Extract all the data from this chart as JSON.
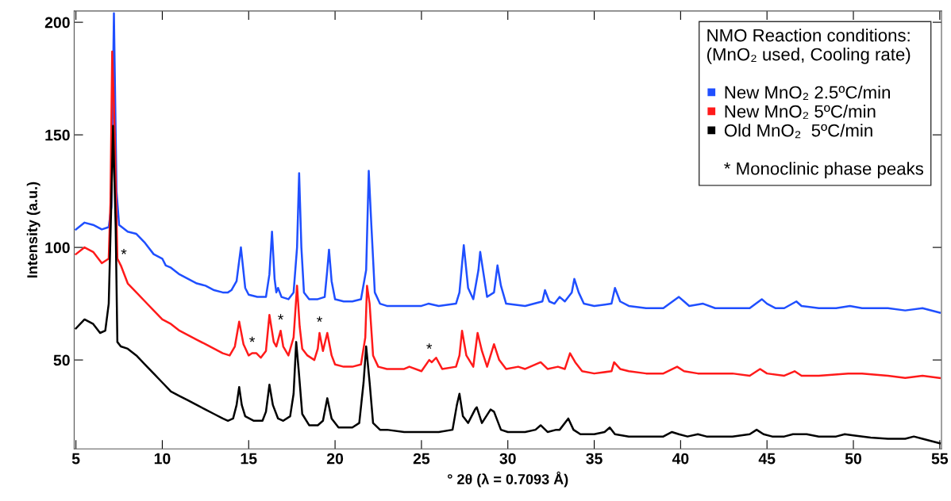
{
  "chart_data": {
    "type": "line",
    "xlabel": "° 2θ (λ = 0.7093 Å)",
    "ylabel": "Intensity (a.u.)",
    "legend_title": "NMO Reaction conditions:\n(MnO₂ used, Cooling rate)",
    "legend": "top right",
    "line_style": "solid",
    "marker": "none",
    "xlim": [
      4.9,
      55.1
    ],
    "ylim": [
      10.5,
      205
    ],
    "xticks": [
      5,
      10,
      15,
      20,
      25,
      30,
      35,
      40,
      45,
      50,
      55
    ],
    "yticks": [
      50,
      100,
      150,
      200
    ],
    "annotations": [
      {
        "text": "*",
        "x": 7.6,
        "y": 92
      },
      {
        "text": "*",
        "x": 15.2,
        "y": 53
      },
      {
        "text": "*",
        "x": 16.85,
        "y": 63
      },
      {
        "text": "*",
        "x": 19.1,
        "y": 62
      },
      {
        "text": "*",
        "x": 25.45,
        "y": 50
      },
      "* Monoclinic phase peaks"
    ],
    "series": [
      {
        "name": "New MnO₂ 2.5ºC/min",
        "color": "#1f4fff",
        "x": [
          5.0,
          5.5,
          6.0,
          6.5,
          6.9,
          7.05,
          7.2,
          7.35,
          7.5,
          8.0,
          8.5,
          9.0,
          9.5,
          10.0,
          10.2,
          10.5,
          11,
          11.5,
          12,
          12.5,
          13,
          13.5,
          13.8,
          14.0,
          14.3,
          14.55,
          14.8,
          15.0,
          15.5,
          16.0,
          16.2,
          16.35,
          16.5,
          16.6,
          16.7,
          16.9,
          17.3,
          17.6,
          17.8,
          17.92,
          18.05,
          18.2,
          18.5,
          19.0,
          19.4,
          19.55,
          19.65,
          19.8,
          20.0,
          20.5,
          21,
          21.5,
          21.8,
          21.95,
          22.1,
          22.3,
          22.6,
          23,
          24,
          25,
          25.4,
          26,
          27,
          27.2,
          27.45,
          27.7,
          28,
          28.3,
          28.4,
          28.6,
          28.8,
          29.2,
          29.4,
          29.6,
          29.9,
          31,
          32,
          32.15,
          32.4,
          32.7,
          33.0,
          33.3,
          33.7,
          33.85,
          34.1,
          34.4,
          35,
          36,
          36.2,
          36.5,
          37,
          38,
          39,
          39.9,
          40.2,
          40.5,
          41.3,
          42,
          43,
          44,
          44.7,
          45.0,
          45.5,
          46,
          46.7,
          47,
          48,
          49,
          49.8,
          50.5,
          52,
          53,
          54,
          55
        ],
        "values": [
          108,
          111,
          110,
          108,
          109,
          118,
          204,
          125,
          110,
          107,
          106,
          102,
          97,
          95,
          92,
          91,
          88,
          86,
          84,
          83,
          81,
          80,
          80,
          81,
          85,
          100,
          82,
          79,
          78,
          78,
          88,
          107,
          86,
          80,
          82,
          78,
          77,
          80,
          100,
          133,
          100,
          80,
          77,
          77,
          78,
          90,
          99,
          85,
          77,
          76,
          76,
          77,
          90,
          134,
          110,
          80,
          75,
          74,
          74,
          74,
          75,
          74,
          75,
          80,
          101,
          82,
          77,
          90,
          98,
          88,
          78,
          80,
          92,
          83,
          75,
          74,
          76,
          81,
          76,
          75,
          78,
          76,
          80,
          86,
          80,
          75,
          74,
          75,
          82,
          76,
          74,
          73,
          73,
          78,
          76,
          74,
          75,
          73,
          73,
          73,
          77,
          75,
          73,
          73,
          76,
          74,
          73,
          73,
          74,
          73,
          73,
          72,
          73,
          71
        ]
      },
      {
        "name": "New MnO₂ 5ºC/min",
        "color": "#ff1a1a",
        "x": [
          5.0,
          5.5,
          6.0,
          6.5,
          6.9,
          7.0,
          7.1,
          7.25,
          7.4,
          7.6,
          8,
          8.5,
          9,
          9.5,
          10,
          10.5,
          11,
          11.5,
          12,
          12.5,
          13,
          13.5,
          13.9,
          14.2,
          14.45,
          14.7,
          15.0,
          15.2,
          15.45,
          15.7,
          16.0,
          16.2,
          16.45,
          16.6,
          16.85,
          17.0,
          17.3,
          17.6,
          17.8,
          17.95,
          18.1,
          18.4,
          18.8,
          19.0,
          19.1,
          19.3,
          19.55,
          19.8,
          20,
          20.5,
          21,
          21.5,
          21.75,
          21.85,
          22.0,
          22.2,
          22.5,
          23,
          24,
          24.3,
          25,
          25.45,
          25.6,
          25.85,
          26.2,
          27,
          27.2,
          27.35,
          27.6,
          28,
          28.25,
          28.5,
          28.8,
          29.2,
          29.5,
          29.9,
          30.6,
          31,
          31.9,
          32.3,
          32.9,
          33.3,
          33.6,
          33.9,
          34.3,
          35,
          36,
          36.15,
          36.5,
          37,
          38,
          39,
          39.8,
          40.2,
          41,
          42,
          43,
          44,
          44.6,
          45,
          46,
          46.6,
          47,
          48,
          49.7,
          50.5,
          52,
          53,
          54,
          55
        ],
        "values": [
          97,
          100,
          98,
          93,
          95,
          120,
          187,
          150,
          95,
          92,
          84,
          80,
          76,
          72,
          68,
          66,
          63,
          61,
          59,
          57,
          55,
          53,
          52,
          56,
          67,
          57,
          52,
          53,
          53,
          51,
          54,
          70,
          58,
          56,
          63,
          56,
          52,
          60,
          83,
          65,
          55,
          52,
          50,
          55,
          62,
          54,
          62,
          52,
          48,
          47,
          47,
          48,
          60,
          83,
          75,
          52,
          47,
          46,
          46,
          47,
          45,
          50,
          49,
          51,
          46,
          47,
          52,
          63,
          52,
          47,
          62,
          54,
          47,
          57,
          50,
          46,
          47,
          46,
          49,
          46,
          47,
          46,
          53,
          49,
          45,
          44,
          45,
          49,
          46,
          45,
          44,
          44,
          47,
          45,
          44,
          44,
          44,
          43,
          46,
          44,
          43,
          45,
          43,
          43,
          44,
          44,
          43,
          42,
          43,
          42
        ]
      },
      {
        "name": "Old MnO₂  5ºC/min",
        "color": "#000000",
        "x": [
          5.0,
          5.5,
          6.0,
          6.4,
          6.7,
          6.9,
          7.05,
          7.15,
          7.3,
          7.4,
          7.6,
          8,
          8.5,
          9,
          9.5,
          10,
          10.5,
          11,
          11.5,
          12,
          12.5,
          13,
          13.5,
          13.8,
          14.1,
          14.3,
          14.45,
          14.6,
          14.8,
          15.3,
          15.8,
          16.0,
          16.2,
          16.4,
          16.7,
          17.0,
          17.4,
          17.6,
          17.75,
          17.9,
          18.1,
          18.5,
          19.0,
          19.3,
          19.55,
          19.8,
          20.2,
          21,
          21.4,
          21.65,
          21.8,
          22.0,
          22.2,
          22.6,
          23,
          24,
          25,
          26,
          26.8,
          27.05,
          27.2,
          27.4,
          27.7,
          28.1,
          28.2,
          28.5,
          29.0,
          29.2,
          29.6,
          30,
          31,
          31.6,
          31.9,
          32.3,
          32.8,
          33.0,
          33.5,
          33.8,
          34.2,
          35,
          35.6,
          35.9,
          36.2,
          37,
          38,
          39,
          39.5,
          39.9,
          40.4,
          41,
          41.5,
          42,
          43,
          44,
          44.4,
          44.8,
          45.3,
          46,
          46.5,
          47.3,
          48,
          49,
          49.5,
          50,
          51,
          52,
          53,
          53.5,
          54,
          55
        ],
        "values": [
          64,
          68,
          66,
          62,
          63,
          75,
          120,
          154,
          110,
          58,
          56,
          55,
          52,
          48,
          44,
          40,
          36,
          34,
          32,
          30,
          28,
          26,
          24,
          23,
          24,
          30,
          38,
          30,
          25,
          23,
          23,
          27,
          39,
          30,
          24,
          23,
          25,
          35,
          58,
          45,
          26,
          21,
          21,
          23,
          33,
          24,
          20,
          20,
          22,
          40,
          56,
          40,
          22,
          19,
          19,
          18,
          18,
          18,
          19,
          30,
          35,
          25,
          22,
          28,
          29,
          22,
          28,
          27,
          19,
          18,
          18,
          19,
          21,
          18,
          19,
          19,
          24,
          19,
          17,
          17,
          18,
          20,
          17,
          16,
          16,
          16,
          18,
          17,
          16,
          17,
          16,
          16,
          16,
          17,
          19,
          17,
          16,
          16,
          17,
          17,
          16,
          16,
          17,
          16.5,
          15.5,
          15,
          15,
          16,
          15,
          13
        ]
      }
    ]
  }
}
